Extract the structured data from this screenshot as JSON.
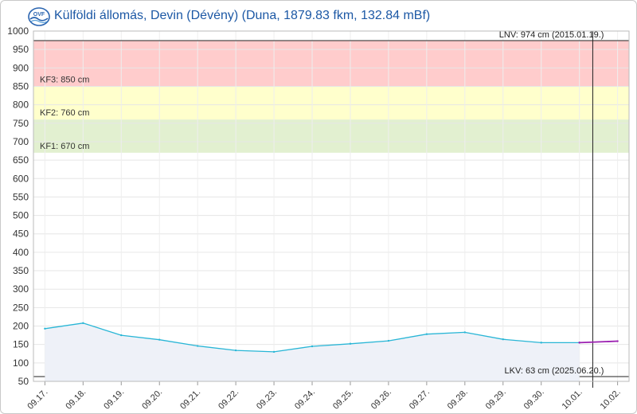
{
  "header": {
    "title": "Külföldi állomás, Devin (Dévény) (Duna, 1879.83 fkm, 132.84 mBf)",
    "logo_text": "OVF"
  },
  "chart_data": {
    "type": "area",
    "title": "Külföldi állomás, Devin (Dévény) (Duna, 1879.83 fkm, 132.84 mBf)",
    "ylim": [
      50,
      1000
    ],
    "yticks": [
      50,
      100,
      150,
      200,
      250,
      300,
      350,
      400,
      450,
      500,
      550,
      600,
      650,
      700,
      750,
      800,
      850,
      900,
      950,
      1000
    ],
    "x_start": "09.17.",
    "x_ticks": [
      "09.17.",
      "09.18.",
      "09.19.",
      "09.20.",
      "09.21.",
      "09.22.",
      "09.23.",
      "09.24.",
      "09.25.",
      "09.26.",
      "09.27.",
      "09.28.",
      "09.29.",
      "09.30.",
      "10.01.",
      "10.02."
    ],
    "x_range_days": [
      0,
      15.6
    ],
    "grid": true,
    "zones": [
      {
        "from": 850,
        "to": 974,
        "color": "#ffcccc",
        "label": "KF3: 850 cm"
      },
      {
        "from": 760,
        "to": 850,
        "color": "#ffffcc",
        "label": "KF2: 760 cm"
      },
      {
        "from": 670,
        "to": 760,
        "color": "#e2f0d0",
        "label": "KF1: 670 cm"
      }
    ],
    "reference_lines": [
      {
        "value": 974,
        "label": "LNV: 974 cm (2015.01.19.)",
        "color": "#222222"
      },
      {
        "value": 63,
        "label": "LKV: 63 cm (2025.06.20.)",
        "color": "#222222"
      }
    ],
    "now_marker_day": 14.65,
    "series": [
      {
        "kind": "measured",
        "color": "#29b6d6",
        "x": [
          0.3,
          1.3,
          2.3,
          3.3,
          4.3,
          5.3,
          6.3,
          7.3,
          8.3,
          9.3,
          10.3,
          11.3,
          12.3,
          13.3,
          14.3
        ],
        "values": [
          193,
          208,
          175,
          163,
          146,
          134,
          130,
          145,
          152,
          160,
          178,
          183,
          164,
          155,
          155
        ]
      },
      {
        "kind": "forecast",
        "color": "#9b1fb1",
        "x": [
          14.3,
          15.3
        ],
        "values": [
          155,
          159
        ]
      }
    ]
  }
}
